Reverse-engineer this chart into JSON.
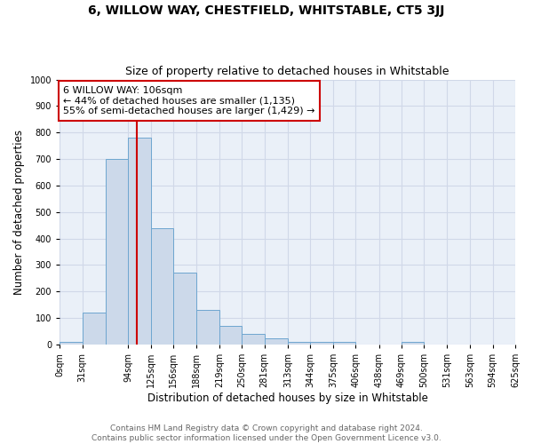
{
  "title": "6, WILLOW WAY, CHESTFIELD, WHITSTABLE, CT5 3JJ",
  "subtitle": "Size of property relative to detached houses in Whitstable",
  "xlabel": "Distribution of detached houses by size in Whitstable",
  "ylabel": "Number of detached properties",
  "bar_color": "#ccd9ea",
  "bar_edge_color": "#6ea6d0",
  "bin_edges": [
    0,
    31,
    63,
    94,
    125,
    156,
    188,
    219,
    250,
    281,
    313,
    344,
    375,
    406,
    438,
    469,
    500,
    531,
    563,
    594,
    625
  ],
  "bar_heights": [
    10,
    120,
    700,
    780,
    440,
    270,
    130,
    70,
    40,
    25,
    10,
    10,
    10,
    0,
    0,
    10,
    0,
    0,
    0,
    0
  ],
  "tick_labels": [
    "0sqm",
    "31sqm",
    "94sqm",
    "125sqm",
    "156sqm",
    "188sqm",
    "219sqm",
    "250sqm",
    "281sqm",
    "313sqm",
    "344sqm",
    "375sqm",
    "406sqm",
    "438sqm",
    "469sqm",
    "500sqm",
    "531sqm",
    "563sqm",
    "594sqm",
    "625sqm"
  ],
  "tick_positions": [
    0,
    31,
    94,
    125,
    156,
    188,
    219,
    250,
    281,
    313,
    344,
    375,
    406,
    438,
    469,
    500,
    531,
    563,
    594,
    625
  ],
  "vline_x": 106,
  "vline_color": "#cc0000",
  "annotation_text": "6 WILLOW WAY: 106sqm\n← 44% of detached houses are smaller (1,135)\n55% of semi-detached houses are larger (1,429) →",
  "annotation_box_color": "#ffffff",
  "annotation_box_edge": "#cc0000",
  "ylim": [
    0,
    1000
  ],
  "yticks": [
    0,
    100,
    200,
    300,
    400,
    500,
    600,
    700,
    800,
    900,
    1000
  ],
  "grid_color": "#d0d8e8",
  "bg_color": "#eaf0f8",
  "footer_line1": "Contains HM Land Registry data © Crown copyright and database right 2024.",
  "footer_line2": "Contains public sector information licensed under the Open Government Licence v3.0.",
  "title_fontsize": 10,
  "subtitle_fontsize": 9,
  "axis_label_fontsize": 8.5,
  "tick_fontsize": 7,
  "annotation_fontsize": 8,
  "footer_fontsize": 6.5
}
